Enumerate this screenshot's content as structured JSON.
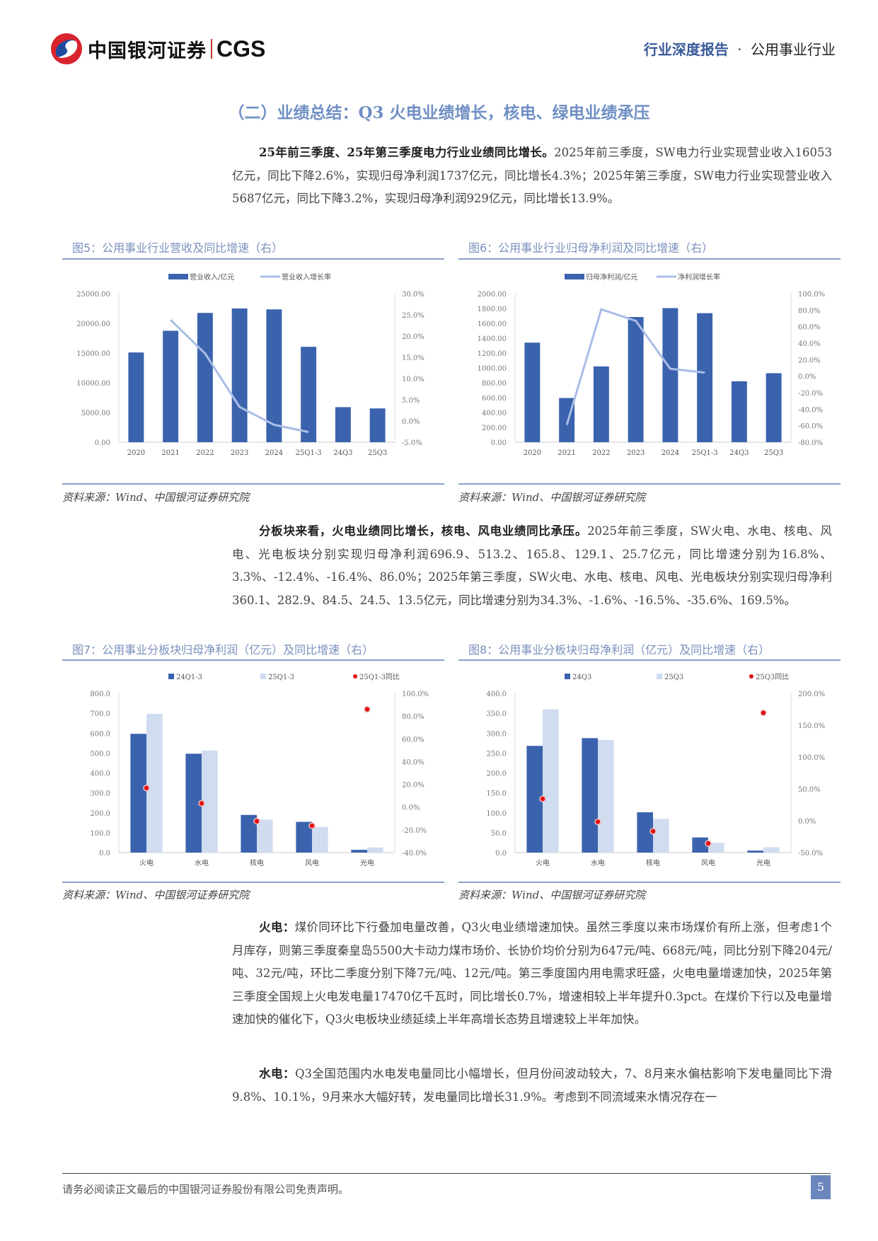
{
  "header": {
    "logo_text": "中国银河证券",
    "logo_cgs": "CGS",
    "report_type": "行业深度报告",
    "separator": "·",
    "industry": "公用事业行业"
  },
  "section": {
    "title": "（二）业绩总结：Q3 火电业绩增长，核电、绿电业绩承压"
  },
  "paragraphs": {
    "p1_bold": "25年前三季度、25年第三季度电力行业业绩同比增长。",
    "p1_text": "2025年前三季度，SW电力行业实现营业收入16053亿元，同比下降2.6%，实现归母净利润1737亿元，同比增长4.3%；2025年第三季度，SW电力行业实现营业收入5687亿元，同比下降3.2%，实现归母净利润929亿元，同比增长13.9%。",
    "p2_bold": "分板块来看，火电业绩同比增长，核电、风电业绩同比承压。",
    "p2_text": "2025年前三季度，SW火电、水电、核电、风电、光电板块分别实现归母净利润696.9、513.2、165.8、129.1、25.7亿元，同比增速分别为16.8%、3.3%、-12.4%、-16.4%、86.0%；2025年第三季度，SW火电、水电、核电、风电、光电板块分别实现归母净利360.1、282.9、84.5、24.5、13.5亿元，同比增速分别为34.3%、-1.6%、-16.5%、-35.6%、169.5%。",
    "p3_bold": "火电：",
    "p3_text": "煤价同环比下行叠加电量改善，Q3火电业绩增速加快。虽然三季度以来市场煤价有所上涨，但考虑1个月库存，则第三季度秦皇岛5500大卡动力煤市场价、长协价均价分别为647元/吨、668元/吨，同比分别下降204元/吨、32元/吨，环比二季度分别下降7元/吨、12元/吨。第三季度国内用电需求旺盛，火电电量增速加快，2025年第三季度全国规上火电发电量17470亿千瓦时，同比增长0.7%，增速相较上半年提升0.3pct。在煤价下行以及电量增速加快的催化下，Q3火电板块业绩延续上半年高增长态势且增速较上半年加快。",
    "p4_bold": "水电：",
    "p4_text": "Q3全国范围内水电发电量同比小幅增长，但月份间波动较大，7、8月来水偏枯影响下发电量同比下滑9.8%、10.1%，9月来水大幅好转，发电量同比增长31.9%。考虑到不同流域来水情况存在一"
  },
  "figures": {
    "fig5": {
      "title": "图5：公用事业行业营收及同比增速（右）",
      "source": "资料来源：Wind、中国银河证券研究院"
    },
    "fig6": {
      "title": "图6：公用事业行业归母净利润及同比增速（右）",
      "source": "资料来源：Wind、中国银河证券研究院"
    },
    "fig7": {
      "title": "图7：公用事业分板块归母净利润（亿元）及同比增速（右）",
      "source": "资料来源：Wind、中国银河证券研究院"
    },
    "fig8": {
      "title": "图8：公用事业分板块归母净利润（亿元）及同比增速（右）",
      "source": "资料来源：Wind、中国银河证券研究院"
    }
  },
  "colors": {
    "bar_dark": "#3b63ad",
    "bar_light": "#d0dcf0",
    "line": "#a9bde6",
    "dot": "#e01010",
    "title_blue": "#6f8fc4"
  },
  "chart_data": [
    {
      "id": "fig5",
      "type": "bar+line",
      "title": "公用事业行业营收及同比增速（右）",
      "categories": [
        "2020",
        "2021",
        "2022",
        "2023",
        "2024",
        "25Q1-3",
        "24Q3",
        "25Q3"
      ],
      "series": [
        {
          "name": "营业收入/亿元",
          "type": "bar",
          "axis": "left",
          "values": [
            15100,
            18750,
            21750,
            22500,
            22350,
            16053,
            5900,
            5687
          ]
        },
        {
          "name": "营业收入增长率",
          "type": "line",
          "axis": "right",
          "values": [
            null,
            23.8,
            15.9,
            3.3,
            -0.9,
            -2.6,
            null,
            null
          ]
        }
      ],
      "ylim_left": [
        0,
        25000
      ],
      "yticks_left": [
        "0.00",
        "5000.00",
        "10000.00",
        "15000.00",
        "20000.00",
        "25000.00"
      ],
      "ylim_right": [
        -5,
        30
      ],
      "yticks_right": [
        "-5.0%",
        "0.0%",
        "5.0%",
        "10.0%",
        "15.0%",
        "20.0%",
        "25.0%",
        "30.0%"
      ],
      "legend_position": "top"
    },
    {
      "id": "fig6",
      "type": "bar+line",
      "title": "公用事业行业归母净利润及同比增速（右）",
      "categories": [
        "2020",
        "2021",
        "2022",
        "2023",
        "2024",
        "25Q1-3",
        "24Q3",
        "25Q3"
      ],
      "series": [
        {
          "name": "归母净利润/亿元",
          "type": "bar",
          "axis": "left",
          "values": [
            1340,
            595,
            1020,
            1685,
            1805,
            1737,
            820,
            929
          ]
        },
        {
          "name": "净利润增长率",
          "type": "line",
          "axis": "right",
          "values": [
            null,
            -59,
            81,
            67,
            9,
            4.3,
            null,
            null
          ]
        }
      ],
      "ylim_left": [
        0,
        2000
      ],
      "yticks_left": [
        "0.00",
        "200.00",
        "400.00",
        "600.00",
        "800.00",
        "1000.00",
        "1200.00",
        "1400.00",
        "1600.00",
        "1800.00",
        "2000.00"
      ],
      "ylim_right": [
        -80,
        100
      ],
      "yticks_right": [
        "-80.0%",
        "-60.0%",
        "-40.0%",
        "-20.0%",
        "0.0%",
        "20.0%",
        "40.0%",
        "60.0%",
        "80.0%",
        "100.0%"
      ],
      "legend_position": "top"
    },
    {
      "id": "fig7",
      "type": "bar+scatter",
      "title": "公用事业分板块归母净利润（亿元）及同比增速（右）",
      "categories": [
        "火电",
        "水电",
        "核电",
        "风电",
        "光电"
      ],
      "series": [
        {
          "name": "24Q1-3",
          "type": "bar",
          "axis": "left",
          "values": [
            596.7,
            496.8,
            189.3,
            154.4,
            13.8
          ]
        },
        {
          "name": "25Q1-3",
          "type": "bar",
          "axis": "left",
          "values": [
            696.9,
            513.2,
            165.8,
            129.1,
            25.7
          ]
        },
        {
          "name": "25Q1-3同比",
          "type": "scatter",
          "axis": "right",
          "values": [
            16.8,
            3.3,
            -12.4,
            -16.4,
            86.0
          ]
        }
      ],
      "ylim_left": [
        0,
        800
      ],
      "yticks_left": [
        "0.0",
        "100.0",
        "200.0",
        "300.0",
        "400.0",
        "500.0",
        "600.0",
        "700.0",
        "800.0"
      ],
      "ylim_right": [
        -40,
        100
      ],
      "yticks_right": [
        "-40.0%",
        "-20.0%",
        "0.0%",
        "20.0%",
        "40.0%",
        "60.0%",
        "80.0%",
        "100.0%"
      ],
      "legend_position": "top"
    },
    {
      "id": "fig8",
      "type": "bar+scatter",
      "title": "公用事业分板块归母净利润（亿元）及同比增速（右）",
      "categories": [
        "火电",
        "水电",
        "核电",
        "风电",
        "光电"
      ],
      "series": [
        {
          "name": "24Q3",
          "type": "bar",
          "axis": "left",
          "values": [
            268.1,
            287.5,
            101.2,
            38.0,
            5.0
          ]
        },
        {
          "name": "25Q3",
          "type": "bar",
          "axis": "left",
          "values": [
            360.1,
            282.9,
            84.5,
            24.5,
            13.5
          ]
        },
        {
          "name": "25Q3同比",
          "type": "scatter",
          "axis": "right",
          "values": [
            34.3,
            -1.6,
            -16.5,
            -35.6,
            169.5
          ]
        }
      ],
      "ylim_left": [
        0,
        400
      ],
      "yticks_left": [
        "0.0",
        "50.0",
        "100.0",
        "150.0",
        "200.0",
        "250.0",
        "300.0",
        "350.0",
        "400.0"
      ],
      "ylim_right": [
        -50,
        200
      ],
      "yticks_right": [
        "-50.0%",
        "0.0%",
        "50.0%",
        "100.0%",
        "150.0%",
        "200.0%"
      ],
      "legend_position": "top"
    }
  ],
  "footer": {
    "disclaimer": "请务必阅读正文最后的中国银河证券股份有限公司免责声明。",
    "page_number": "5"
  }
}
